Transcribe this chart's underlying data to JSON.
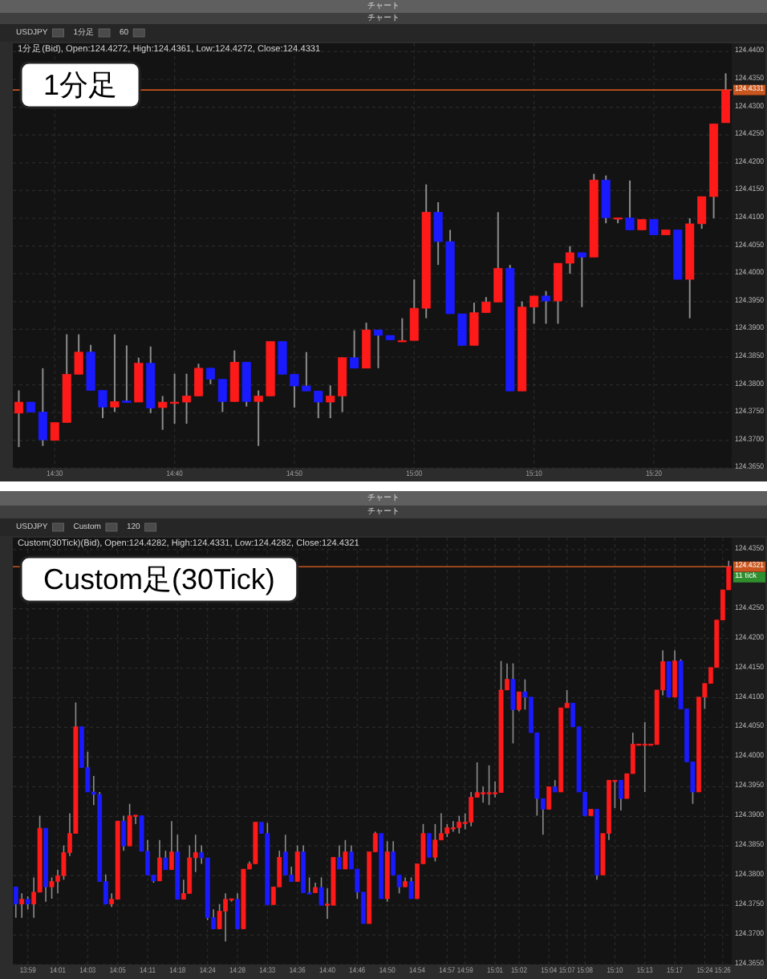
{
  "chart_data": [
    {
      "type": "candlestick",
      "title": "1分足",
      "subtitle": "1分足(Bid), Open:124.4272, High:124.4361, Low:124.4272, Close:124.4331",
      "annotations": [
        "チャート",
        "チャート",
        "USDJPY",
        "1分足",
        "60"
      ],
      "categories": [
        null,
        null,
        null,
        "14:30",
        null,
        null,
        null,
        null,
        null,
        null,
        null,
        null,
        null,
        "14:40",
        null,
        null,
        null,
        null,
        null,
        null,
        null,
        null,
        null,
        "14:50",
        null,
        null,
        null,
        null,
        null,
        null,
        null,
        null,
        null,
        "15:00",
        null,
        null,
        null,
        null,
        null,
        null,
        null,
        null,
        null,
        "15:10",
        null,
        null,
        null,
        null,
        null,
        null,
        null,
        null,
        null,
        "15:20",
        null,
        null,
        null,
        null,
        null,
        null
      ],
      "ohlc": [
        [
          124.3749,
          124.379,
          124.3688,
          124.3769
        ],
        [
          124.3769,
          124.3769,
          124.3751,
          124.3751
        ],
        [
          124.3751,
          124.383,
          124.369,
          124.3701
        ],
        [
          124.37,
          124.3732,
          124.37,
          124.3732
        ],
        [
          124.3732,
          124.3891,
          124.3732,
          124.3819
        ],
        [
          124.3819,
          124.3891,
          124.3819,
          124.3859
        ],
        [
          124.3859,
          124.3872,
          124.379,
          124.379
        ],
        [
          124.379,
          124.379,
          124.374,
          124.376
        ],
        [
          124.376,
          124.3891,
          124.3751,
          124.377
        ],
        [
          124.3771,
          124.3871,
          124.3768,
          124.3768
        ],
        [
          124.3769,
          124.3849,
          124.3769,
          124.3839
        ],
        [
          124.3839,
          124.3869,
          124.3749,
          124.3758
        ],
        [
          124.3759,
          124.378,
          124.3719,
          124.3769
        ],
        [
          124.3769,
          124.382,
          124.373,
          124.3769
        ],
        [
          124.3769,
          124.382,
          124.373,
          124.378
        ],
        [
          124.378,
          124.3838,
          124.378,
          124.383
        ],
        [
          124.383,
          124.383,
          124.3801,
          124.381
        ],
        [
          124.381,
          124.381,
          124.3751,
          124.377
        ],
        [
          124.377,
          124.3862,
          124.377,
          124.3841
        ],
        [
          124.3841,
          124.3841,
          124.3761,
          124.377
        ],
        [
          124.377,
          124.379,
          124.369,
          124.378
        ],
        [
          124.378,
          124.3878,
          124.378,
          124.3878
        ],
        [
          124.3878,
          124.3878,
          124.3819,
          124.3819
        ],
        [
          124.3819,
          124.3819,
          124.3759,
          124.3798
        ],
        [
          124.3798,
          124.3859,
          124.3789,
          124.3789
        ],
        [
          124.3789,
          124.3789,
          124.374,
          124.3769
        ],
        [
          124.3769,
          124.3799,
          124.374,
          124.378
        ],
        [
          124.378,
          124.3849,
          124.3751,
          124.3849
        ],
        [
          124.3849,
          124.3898,
          124.383,
          124.383
        ],
        [
          124.383,
          124.3912,
          124.383,
          124.3899
        ],
        [
          124.3899,
          124.3899,
          124.383,
          124.3889
        ],
        [
          124.3889,
          124.3889,
          124.3881,
          124.3881
        ],
        [
          124.388,
          124.392,
          124.388,
          124.388
        ],
        [
          124.388,
          124.399,
          124.388,
          124.3938
        ],
        [
          124.3938,
          124.4161,
          124.392,
          124.4111
        ],
        [
          124.4111,
          124.4129,
          124.4016,
          124.4058
        ],
        [
          124.4058,
          124.4079,
          124.3928,
          124.3928
        ],
        [
          124.3928,
          124.3928,
          124.3871,
          124.3871
        ],
        [
          124.3871,
          124.3948,
          124.3871,
          124.393
        ],
        [
          124.393,
          124.3958,
          124.393,
          124.3949
        ],
        [
          124.3949,
          124.4111,
          124.3949,
          124.401
        ],
        [
          124.401,
          124.4016,
          124.3789,
          124.3789
        ],
        [
          124.3789,
          124.395,
          124.3789,
          124.394
        ],
        [
          124.394,
          124.396,
          124.391,
          124.396
        ],
        [
          124.396,
          124.3969,
          124.391,
          124.3951
        ],
        [
          124.3951,
          124.4019,
          124.391,
          124.4019
        ],
        [
          124.4019,
          124.405,
          124.4,
          124.4038
        ],
        [
          124.4038,
          124.4038,
          124.394,
          124.403
        ],
        [
          124.403,
          124.418,
          124.403,
          124.4169
        ],
        [
          124.4169,
          124.4177,
          124.4091,
          124.4101
        ],
        [
          124.4101,
          124.4101,
          124.4091,
          124.4101
        ],
        [
          124.4101,
          124.4168,
          124.4079,
          124.4079
        ],
        [
          124.4079,
          124.4098,
          124.4079,
          124.4098
        ],
        [
          124.4098,
          124.4098,
          124.407,
          124.407
        ],
        [
          124.407,
          124.4079,
          124.407,
          124.4079
        ],
        [
          124.4079,
          124.4079,
          124.399,
          124.399
        ],
        [
          124.399,
          124.41,
          124.392,
          124.409
        ],
        [
          124.409,
          124.4139,
          124.4081,
          124.4139
        ],
        [
          124.4139,
          124.427,
          124.41,
          124.427
        ],
        [
          124.4272,
          124.4361,
          124.4272,
          124.4331
        ]
      ],
      "colors": [
        "#ff1a1a",
        "#1a1aff",
        "#1a1aff",
        "#ff1a1a",
        "#ff1a1a",
        "#ff1a1a",
        "#1a1aff",
        "#1a1aff",
        "#ff1a1a",
        "#1a1aff",
        "#ff1a1a",
        "#1a1aff",
        "#ff1a1a",
        "#ff1a1a",
        "#ff1a1a",
        "#ff1a1a",
        "#1a1aff",
        "#1a1aff",
        "#ff1a1a",
        "#1a1aff",
        "#ff1a1a",
        "#ff1a1a",
        "#1a1aff",
        "#1a1aff",
        "#1a1aff",
        "#1a1aff",
        "#ff1a1a",
        "#ff1a1a",
        "#1a1aff",
        "#ff1a1a",
        "#1a1aff",
        "#1a1aff",
        "#ff1a1a",
        "#ff1a1a",
        "#ff1a1a",
        "#1a1aff",
        "#1a1aff",
        "#1a1aff",
        "#ff1a1a",
        "#ff1a1a",
        "#ff1a1a",
        "#1a1aff",
        "#ff1a1a",
        "#ff1a1a",
        "#1a1aff",
        "#ff1a1a",
        "#ff1a1a",
        "#1a1aff",
        "#ff1a1a",
        "#1a1aff",
        "#ff1a1a",
        "#1a1aff",
        "#ff1a1a",
        "#1a1aff",
        "#ff1a1a",
        "#1a1aff",
        "#ff1a1a",
        "#ff1a1a",
        "#ff1a1a",
        "#ff1a1a"
      ],
      "ylim": [
        124.365,
        124.4415
      ],
      "yticks": [
        {
          "value": 124.365,
          "label": "124.3650"
        },
        {
          "value": 124.37,
          "label": "124.3700"
        },
        {
          "value": 124.375,
          "label": "124.3750"
        },
        {
          "value": 124.38,
          "label": "124.3800"
        },
        {
          "value": 124.385,
          "label": "124.3850"
        },
        {
          "value": 124.39,
          "label": "124.3900"
        },
        {
          "value": 124.395,
          "label": "124.3950"
        },
        {
          "value": 124.4,
          "label": "124.4000"
        },
        {
          "value": 124.405,
          "label": "124.4050"
        },
        {
          "value": 124.41,
          "label": "124.4100"
        },
        {
          "value": 124.415,
          "label": "124.4150"
        },
        {
          "value": 124.42,
          "label": "124.4200"
        },
        {
          "value": 124.425,
          "label": "124.4250"
        },
        {
          "value": 124.43,
          "label": "124.4300"
        },
        {
          "value": 124.435,
          "label": "124.4350"
        },
        {
          "value": 124.44,
          "label": "124.4400"
        }
      ],
      "grid": true,
      "ref_lines": [
        {
          "axis": "y",
          "value": 124.4331,
          "label": "124.4331",
          "color": "#c8561e"
        }
      ]
    },
    {
      "type": "candlestick",
      "title": "Custom足(30Tick)",
      "subtitle": "Custom(30Tick)(Bid), Open:124.4282, High:124.4331, Low:124.4282, Close:124.4321",
      "annotations": [
        "チャート",
        "チャート",
        "USDJPY",
        "Custom",
        "120",
        "11 tick"
      ],
      "categories": [
        null,
        null,
        "13:59",
        null,
        null,
        null,
        null,
        "14:01",
        null,
        null,
        null,
        null,
        "14:03",
        null,
        null,
        null,
        null,
        "14:05",
        null,
        null,
        null,
        null,
        "14:11",
        null,
        null,
        null,
        null,
        "14:18",
        null,
        null,
        null,
        null,
        "14:24",
        null,
        null,
        null,
        null,
        "14:28",
        null,
        null,
        null,
        null,
        "14:33",
        null,
        null,
        null,
        null,
        "14:36",
        null,
        null,
        null,
        null,
        "14:40",
        null,
        null,
        null,
        null,
        "14:46",
        null,
        null,
        null,
        null,
        "14:50",
        null,
        null,
        null,
        null,
        "14:54",
        null,
        null,
        null,
        null,
        "14:57",
        null,
        null,
        "14:59",
        null,
        null,
        null,
        null,
        "15:01",
        null,
        null,
        null,
        "15:02",
        null,
        null,
        null,
        null,
        "15:04",
        null,
        null,
        "15:07",
        null,
        null,
        "15:08",
        null,
        null,
        null,
        null,
        "15:10",
        null,
        null,
        null,
        null,
        "15:13",
        null,
        null,
        null,
        null,
        "15:17",
        null,
        null,
        null,
        null,
        "15:24",
        null,
        null,
        "15:26",
        null
      ],
      "ohlc": [
        [
          124.3781,
          124.3781,
          124.3729,
          124.3752
        ],
        [
          124.3752,
          124.377,
          124.3729,
          124.376
        ],
        [
          124.376,
          124.3765,
          124.3743,
          124.3752
        ],
        [
          124.3752,
          124.3797,
          124.3729,
          124.3772
        ],
        [
          124.3772,
          124.3901,
          124.3772,
          124.388
        ],
        [
          124.388,
          124.388,
          124.3756,
          124.3781
        ],
        [
          124.3781,
          124.3797,
          124.3761,
          124.379
        ],
        [
          124.379,
          124.381,
          124.377,
          124.38
        ],
        [
          124.38,
          124.3851,
          124.3793,
          124.3839
        ],
        [
          124.3839,
          124.3905,
          124.3833,
          124.3871
        ],
        [
          124.3871,
          124.4092,
          124.3871,
          124.4051
        ],
        [
          124.4051,
          124.4051,
          124.3982,
          124.3982
        ],
        [
          124.3982,
          124.4009,
          124.3941,
          124.3941
        ],
        [
          124.3941,
          124.3968,
          124.3919,
          124.3937
        ],
        [
          124.3937,
          124.3941,
          124.379,
          124.379
        ],
        [
          124.379,
          124.3802,
          124.3752,
          124.3752
        ],
        [
          124.3752,
          124.377,
          124.3747,
          124.376
        ],
        [
          124.376,
          124.3892,
          124.376,
          124.3892
        ],
        [
          124.3892,
          124.3901,
          124.3842,
          124.385
        ],
        [
          124.385,
          124.3921,
          124.385,
          124.3901
        ],
        [
          124.39,
          124.3902,
          124.3887,
          124.3902
        ],
        [
          124.3901,
          124.3901,
          124.3841,
          124.3841
        ],
        [
          124.3841,
          124.386,
          124.3801,
          124.3801
        ],
        [
          124.3801,
          124.3801,
          124.3788,
          124.3791
        ],
        [
          124.3791,
          124.386,
          124.3791,
          124.383
        ],
        [
          124.383,
          124.3842,
          124.381,
          124.381
        ],
        [
          124.381,
          124.3892,
          124.381,
          124.384
        ],
        [
          124.384,
          124.3869,
          124.376,
          124.376
        ],
        [
          124.376,
          124.3793,
          124.376,
          124.377
        ],
        [
          124.377,
          124.3851,
          124.377,
          124.383
        ],
        [
          124.383,
          124.3869,
          124.3806,
          124.3839
        ],
        [
          124.3839,
          124.3851,
          124.382,
          124.383
        ],
        [
          124.383,
          124.383,
          124.3725,
          124.3729
        ],
        [
          124.3729,
          124.3743,
          124.371,
          124.371
        ],
        [
          124.371,
          124.3752,
          124.371,
          124.374
        ],
        [
          124.374,
          124.377,
          124.3689,
          124.376
        ],
        [
          124.3759,
          124.3761,
          124.3756,
          124.3761
        ],
        [
          124.376,
          124.377,
          124.371,
          124.371
        ],
        [
          124.371,
          124.3811,
          124.371,
          124.3811
        ],
        [
          124.3811,
          124.3824,
          124.3811,
          124.382
        ],
        [
          124.382,
          124.389,
          124.382,
          124.389
        ],
        [
          124.389,
          124.389,
          124.3871,
          124.3871
        ],
        [
          124.3871,
          124.3889,
          124.3751,
          124.3751
        ],
        [
          124.3751,
          124.3781,
          124.3751,
          124.3781
        ],
        [
          124.3781,
          124.3842,
          124.3781,
          124.3831
        ],
        [
          124.384,
          124.3869,
          124.3801,
          124.3801
        ],
        [
          124.3801,
          124.3815,
          124.379,
          124.379
        ],
        [
          124.379,
          124.3851,
          124.379,
          124.384
        ],
        [
          124.384,
          124.3851,
          124.3771,
          124.3771
        ],
        [
          124.3771,
          124.3797,
          124.3769,
          124.3769
        ],
        [
          124.3771,
          124.3788,
          124.3771,
          124.378
        ],
        [
          124.378,
          124.3797,
          124.375,
          124.375
        ],
        [
          124.375,
          124.3779,
          124.3727,
          124.3752
        ],
        [
          124.375,
          124.3831,
          124.375,
          124.3831
        ],
        [
          124.3831,
          124.3851,
          124.3811,
          124.3811
        ],
        [
          124.3811,
          124.386,
          124.3811,
          124.384
        ],
        [
          124.384,
          124.3851,
          124.3811,
          124.3811
        ],
        [
          124.3811,
          124.3811,
          124.3761,
          124.3772
        ],
        [
          124.3772,
          124.3772,
          124.3719,
          124.3719
        ],
        [
          124.3719,
          124.384,
          124.3719,
          124.384
        ],
        [
          124.384,
          124.3874,
          124.384,
          124.3871
        ],
        [
          124.3871,
          124.3871,
          124.3761,
          124.3761
        ],
        [
          124.3761,
          124.3858,
          124.3756,
          124.384
        ],
        [
          124.384,
          124.3858,
          124.3801,
          124.3801
        ],
        [
          124.3801,
          124.3801,
          124.377,
          124.3781
        ],
        [
          124.3781,
          124.3797,
          124.3781,
          124.379
        ],
        [
          124.379,
          124.3797,
          124.3761,
          124.3761
        ],
        [
          124.3761,
          124.382,
          124.3761,
          124.382
        ],
        [
          124.382,
          124.3887,
          124.382,
          124.3871
        ],
        [
          124.3871,
          124.3871,
          124.3831,
          124.3831
        ],
        [
          124.3831,
          124.3887,
          124.3824,
          124.386
        ],
        [
          124.386,
          124.3905,
          124.386,
          124.3871
        ],
        [
          124.3871,
          124.3887,
          124.3865,
          124.3881
        ],
        [
          124.3881,
          124.3892,
          124.3874,
          124.3881
        ],
        [
          124.3881,
          124.3901,
          124.3871,
          124.389
        ],
        [
          124.389,
          124.3905,
          124.3878,
          124.389
        ],
        [
          124.389,
          124.3941,
          124.3883,
          124.3932
        ],
        [
          124.3932,
          124.3991,
          124.3932,
          124.394
        ],
        [
          124.394,
          124.395,
          124.3923,
          124.394
        ],
        [
          124.394,
          124.3986,
          124.3919,
          124.394
        ],
        [
          124.394,
          124.3959,
          124.3932,
          124.394
        ],
        [
          124.394,
          124.4162,
          124.394,
          124.4113
        ],
        [
          124.4113,
          124.4158,
          124.4113,
          124.4131
        ],
        [
          124.4131,
          124.4158,
          124.4023,
          124.408
        ],
        [
          124.408,
          124.411,
          124.4077,
          124.411
        ],
        [
          124.411,
          124.4131,
          124.408,
          124.4101
        ],
        [
          124.4101,
          124.4101,
          124.4041,
          124.4041
        ],
        [
          124.4041,
          124.4041,
          124.3901,
          124.393
        ],
        [
          124.393,
          124.393,
          124.3869,
          124.3912
        ],
        [
          124.3912,
          124.395,
          124.3912,
          124.395
        ],
        [
          124.395,
          124.3961,
          124.3941,
          124.3941
        ],
        [
          124.3941,
          124.4083,
          124.3941,
          124.4083
        ],
        [
          124.4083,
          124.4113,
          124.4083,
          124.4091
        ],
        [
          124.4091,
          124.4091,
          124.4051,
          124.4051
        ],
        [
          124.4051,
          124.4051,
          124.3941,
          124.3941
        ],
        [
          124.3941,
          124.3941,
          124.3901,
          124.3901
        ],
        [
          124.3901,
          124.3912,
          124.3901,
          124.3912
        ],
        [
          124.3912,
          124.3912,
          124.3793,
          124.3801
        ],
        [
          124.3801,
          124.3871,
          124.3801,
          124.3871
        ],
        [
          124.3871,
          124.3961,
          124.386,
          124.3961
        ],
        [
          124.3961,
          124.3961,
          124.3914,
          124.3961
        ],
        [
          124.3961,
          124.3961,
          124.391,
          124.393
        ],
        [
          124.393,
          124.3972,
          124.393,
          124.3972
        ],
        [
          124.3972,
          124.4041,
          124.3972,
          124.4022
        ],
        [
          124.4022,
          124.4022,
          124.4022,
          124.4022
        ],
        [
          124.4022,
          124.4059,
          124.3941,
          124.4022
        ],
        [
          124.4022,
          124.4022,
          124.4022,
          124.4022
        ],
        [
          124.4021,
          124.4113,
          124.4021,
          124.4113
        ],
        [
          124.4113,
          124.418,
          124.4104,
          124.4161
        ],
        [
          124.4161,
          124.4161,
          124.4101,
          124.4101
        ],
        [
          124.4101,
          124.418,
          124.4101,
          124.4162
        ],
        [
          124.4162,
          124.4165,
          124.4081,
          124.4081
        ],
        [
          124.4081,
          124.4081,
          124.3992,
          124.3992
        ],
        [
          124.3992,
          124.3992,
          124.3921,
          124.3941
        ],
        [
          124.3941,
          124.4101,
          124.3941,
          124.4101
        ],
        [
          124.4101,
          124.4124,
          124.4081,
          124.4124
        ],
        [
          124.4124,
          124.4151,
          124.4124,
          124.4151
        ],
        [
          124.4151,
          124.4231,
          124.4151,
          124.4231
        ],
        [
          124.4231,
          124.4282,
          124.4231,
          124.4282
        ],
        [
          124.4282,
          124.4331,
          124.4282,
          124.4321
        ]
      ],
      "colors": [
        "#1a1aff",
        "#ff1a1a",
        "#1a1aff",
        "#ff1a1a",
        "#ff1a1a",
        "#1a1aff",
        "#ff1a1a",
        "#ff1a1a",
        "#ff1a1a",
        "#ff1a1a",
        "#ff1a1a",
        "#1a1aff",
        "#1a1aff",
        "#1a1aff",
        "#1a1aff",
        "#1a1aff",
        "#ff1a1a",
        "#ff1a1a",
        "#1a1aff",
        "#ff1a1a",
        "#ff1a1a",
        "#1a1aff",
        "#1a1aff",
        "#1a1aff",
        "#ff1a1a",
        "#1a1aff",
        "#ff1a1a",
        "#1a1aff",
        "#ff1a1a",
        "#ff1a1a",
        "#ff1a1a",
        "#1a1aff",
        "#1a1aff",
        "#1a1aff",
        "#ff1a1a",
        "#ff1a1a",
        "#ff1a1a",
        "#1a1aff",
        "#ff1a1a",
        "#ff1a1a",
        "#ff1a1a",
        "#1a1aff",
        "#1a1aff",
        "#ff1a1a",
        "#ff1a1a",
        "#1a1aff",
        "#1a1aff",
        "#ff1a1a",
        "#1a1aff",
        "#1a1aff",
        "#ff1a1a",
        "#1a1aff",
        "#ff1a1a",
        "#ff1a1a",
        "#1a1aff",
        "#ff1a1a",
        "#1a1aff",
        "#1a1aff",
        "#1a1aff",
        "#ff1a1a",
        "#ff1a1a",
        "#1a1aff",
        "#ff1a1a",
        "#1a1aff",
        "#1a1aff",
        "#ff1a1a",
        "#1a1aff",
        "#ff1a1a",
        "#ff1a1a",
        "#1a1aff",
        "#ff1a1a",
        "#ff1a1a",
        "#ff1a1a",
        "#ff1a1a",
        "#ff1a1a",
        "#ff1a1a",
        "#ff1a1a",
        "#ff1a1a",
        "#ff1a1a",
        "#ff1a1a",
        "#ff1a1a",
        "#ff1a1a",
        "#ff1a1a",
        "#1a1aff",
        "#ff1a1a",
        "#1a1aff",
        "#1a1aff",
        "#1a1aff",
        "#1a1aff",
        "#ff1a1a",
        "#1a1aff",
        "#ff1a1a",
        "#ff1a1a",
        "#1a1aff",
        "#1a1aff",
        "#1a1aff",
        "#ff1a1a",
        "#1a1aff",
        "#ff1a1a",
        "#ff1a1a",
        "#ff1a1a",
        "#1a1aff",
        "#ff1a1a",
        "#ff1a1a",
        "#ff1a1a",
        "#ff1a1a",
        "#ff1a1a",
        "#ff1a1a",
        "#ff1a1a",
        "#1a1aff",
        "#ff1a1a",
        "#1a1aff",
        "#1a1aff",
        "#1a1aff",
        "#ff1a1a",
        "#ff1a1a",
        "#ff1a1a",
        "#ff1a1a",
        "#ff1a1a",
        "#ff1a1a"
      ],
      "ylim": [
        124.365,
        124.437
      ],
      "yticks": [
        {
          "value": 124.365,
          "label": "124.3650"
        },
        {
          "value": 124.37,
          "label": "124.3700"
        },
        {
          "value": 124.375,
          "label": "124.3750"
        },
        {
          "value": 124.38,
          "label": "124.3800"
        },
        {
          "value": 124.385,
          "label": "124.3850"
        },
        {
          "value": 124.39,
          "label": "124.3900"
        },
        {
          "value": 124.395,
          "label": "124.3950"
        },
        {
          "value": 124.4,
          "label": "124.4000"
        },
        {
          "value": 124.405,
          "label": "124.4050"
        },
        {
          "value": 124.41,
          "label": "124.4100"
        },
        {
          "value": 124.415,
          "label": "124.4150"
        },
        {
          "value": 124.42,
          "label": "124.4200"
        },
        {
          "value": 124.425,
          "label": "124.4250"
        },
        {
          "value": 124.435,
          "label": "124.4350"
        }
      ],
      "grid": true,
      "ref_lines": [
        {
          "axis": "y",
          "value": 124.4321,
          "label": "124.4321",
          "color": "#c8561e"
        }
      ]
    }
  ]
}
